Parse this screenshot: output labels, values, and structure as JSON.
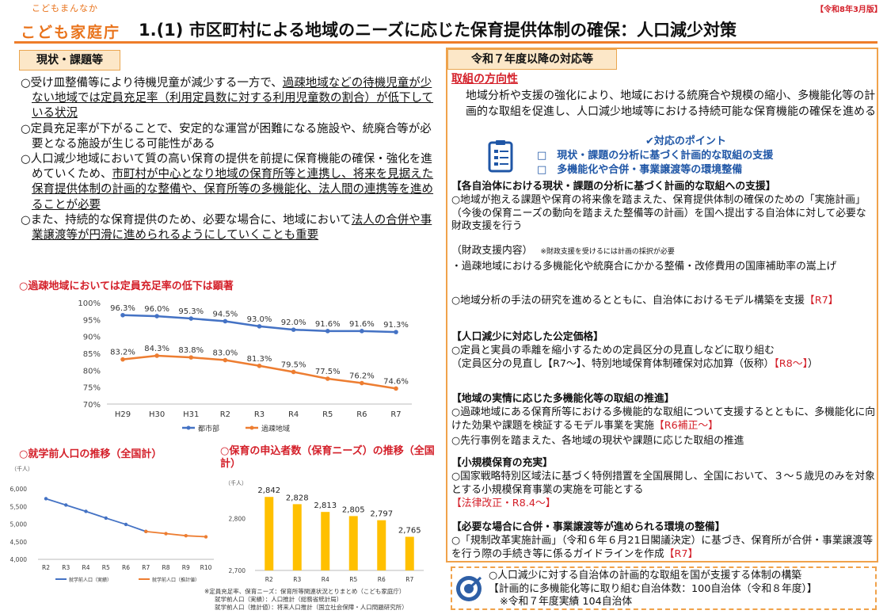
{
  "header": {
    "logo_small": "こどもまんなか",
    "logo_main": "こども家庭庁",
    "title": "1.(1) 市区町村による地域のニーズに応じた保育提供体制の確保：人口減少対策",
    "date_tag": "【令和8年3月版】"
  },
  "left": {
    "header": "現状・課題等",
    "issues": [
      {
        "pre": "○受け皿整備等により待機児童が減少する一方で、",
        "ul": "過疎地域などの待機児童が少ない地域では定員充足率（利用定員数に対する利用児童数の割合）が低下している状況",
        "post": ""
      },
      {
        "pre": "○定員充足率が下がることで、安定的な運営が困難になる施設や、統廃合等が必要となる施設が生じる可能性がある",
        "ul": "",
        "post": ""
      },
      {
        "pre": "○人口減少地域において質の高い保育の提供を前提に保育機能の確保・強化を進めていくため、",
        "ul": "市町村が中心となり地域の保育所等と連携し、将来を見据えた保育提供体制の計画的な整備や、保育所等の多機能化、法人間の連携等を進めることが必要",
        "post": ""
      },
      {
        "pre": "○また、持続的な保育提供のため、必要な場合に、地域において",
        "ul": "法人の合併や事業譲渡等が円滑に進められるようにしていくことも重要",
        "post": ""
      }
    ]
  },
  "chart_data": [
    {
      "type": "line",
      "title": "○過疎地域においては定員充足率の低下は顕著",
      "categories": [
        "H29",
        "H30",
        "H31",
        "R2",
        "R3",
        "R4",
        "R5",
        "R6",
        "R7"
      ],
      "ylim": [
        70,
        100
      ],
      "yticks": [
        "100%",
        "95%",
        "90%",
        "85%",
        "80%",
        "75%",
        "70%"
      ],
      "series": [
        {
          "name": "都市部",
          "color": "#4472c4",
          "values": [
            96.3,
            96.0,
            95.3,
            94.5,
            93.0,
            92.0,
            91.6,
            91.6,
            91.3
          ],
          "labels": [
            "96.3%",
            "96.0%",
            "95.3%",
            "94.5%",
            "93.0%",
            "92.0%",
            "91.6%",
            "91.6%",
            "91.3%"
          ]
        },
        {
          "name": "過疎地域",
          "color": "#ed7d31",
          "values": [
            83.2,
            84.3,
            83.8,
            83.0,
            81.3,
            79.5,
            77.5,
            76.2,
            74.6
          ],
          "labels": [
            "83.2%",
            "84.3%",
            "83.8%",
            "83.0%",
            "81.3%",
            "79.5%",
            "77.5%",
            "76.2%",
            "74.6%"
          ]
        }
      ]
    },
    {
      "type": "line",
      "title": "○就学前人口の推移（全国計）",
      "unit": "（千人）",
      "categories": [
        "R2",
        "R3",
        "R4",
        "R5",
        "R6",
        "R7",
        "R8",
        "R9",
        "R10"
      ],
      "ylim": [
        4000,
        6000
      ],
      "yticks": [
        "6,000",
        "5,500",
        "5,000",
        "4,500",
        "4,000"
      ],
      "series": [
        {
          "name": "就学前人口（実績）",
          "color": "#4472c4",
          "values": [
            5720,
            5540,
            5360,
            5170,
            4990,
            4790,
            null,
            null,
            null
          ]
        },
        {
          "name": "就学前人口（推計値）",
          "color": "#ed7d31",
          "values": [
            null,
            null,
            null,
            null,
            null,
            4790,
            4730,
            4670,
            4640
          ]
        }
      ]
    },
    {
      "type": "bar",
      "title": "○保育の申込者数（保育ニーズ）の推移（全国計）",
      "unit": "（千人）",
      "categories": [
        "R2",
        "R3",
        "R4",
        "R5",
        "R6",
        "R7"
      ],
      "values": [
        2842,
        2828,
        2813,
        2805,
        2797,
        2765
      ],
      "labels": [
        "2,842",
        "2,828",
        "2,813",
        "2,805",
        "2,797",
        "2,765"
      ],
      "ylim": [
        2700,
        2850
      ],
      "yticks": [
        "2,800",
        "2,700"
      ],
      "color": "#ffc000"
    }
  ],
  "footnotes": [
    "※定員充足率、保育ニーズ：保育所等関連状況とりまとめ（こども家庭庁）",
    "就学前人口（実績）：人口推計（総務省統計局）",
    "就学前人口（推計値）：将来人口推計（国立社会保障・人口問題研究所）"
  ],
  "right": {
    "header": "令和７年度以降の対応等",
    "direction_title": "取組の方向性",
    "direction_text": "地域分析や支援の強化により、地域における統廃合や規模の縮小、多機能化等の計画的な取組を促進し、人口減少地域等における持続可能な保育機能の確保を進める",
    "points_title": "✔対応のポイント",
    "points": [
      "□　現状・課題の分析に基づく計画的な取組の支援",
      "□　多機能化や合併・事業譲渡等の環境整備"
    ],
    "s1_title": "【各自治体における現状・課題の分析に基づく計画的な取組への支援】",
    "s1_text": "○地域が抱える課題や保育の将来像を踏まえた、保育提供体制の確保のための「実施計画」（今後の保育ニーズの動向を踏まえた整備等の計画）を国へ提出する自治体に対して必要な財政支援を行う",
    "s1_support": "（財政支援内容）",
    "s1_support_note": "※財政支援を受けるには計画の採択が必要",
    "s1_bullet": "・過疎地域における多機能化や統廃合にかかる整備・改修費用の国庫補助率の嵩上げ",
    "s1_research": "○地域分析の手法の研究を進めるとともに、自治体におけるモデル構築を支援",
    "s1_research_tag": "【R7】",
    "s2_title": "【人口減少に対応した公定価格】",
    "s2_text": "○定員と実員の乖離を縮小するための定員区分の見直しなどに取り組む",
    "s2_text2": "（定員区分の見直し【R7〜】、特別地域保育体制確保対応加算（仮称）",
    "s2_tag": "【R8〜】",
    "s2_close": "）",
    "s3_title": "【地域の実情に応じた多機能化等の取組の推進】",
    "s3_text": "○過疎地域にある保育所等における多機能的な取組について支援するとともに、多機能化に向けた効果や課題を検証するモデル事業を実施",
    "s3_tag": "【R6補正〜】",
    "s3_text2": "○先行事例を踏まえた、各地域の現状や課題に応じた取組の推進",
    "s4_title": "【小規模保育の充実】",
    "s4_text": "○国家戦略特別区域法に基づく特例措置を全国展開し、全国において、３〜５歳児のみを対象とする小規模保育事業の実施を可能とする",
    "s4_tag": "【法律改正・R8.4〜】",
    "s5_title": "【必要な場合に合併・事業譲渡等が進められる環境の整備】",
    "s5_text": "○「規制改革実施計画」（令和６年６月21日閣議決定）に基づき、保育所が合併・事業譲渡等を行う際の手続き等に係るガイドラインを作成",
    "s5_tag": "【R7】"
  },
  "kpi": {
    "line1": "○人口減少に対する自治体の計画的な取組を国が支援する体制の構築",
    "line2": "【計画的に多機能化等に取り組む自治体数：100自治体（令和８年度）】",
    "line3": "※令和７年度実績 104自治体"
  }
}
